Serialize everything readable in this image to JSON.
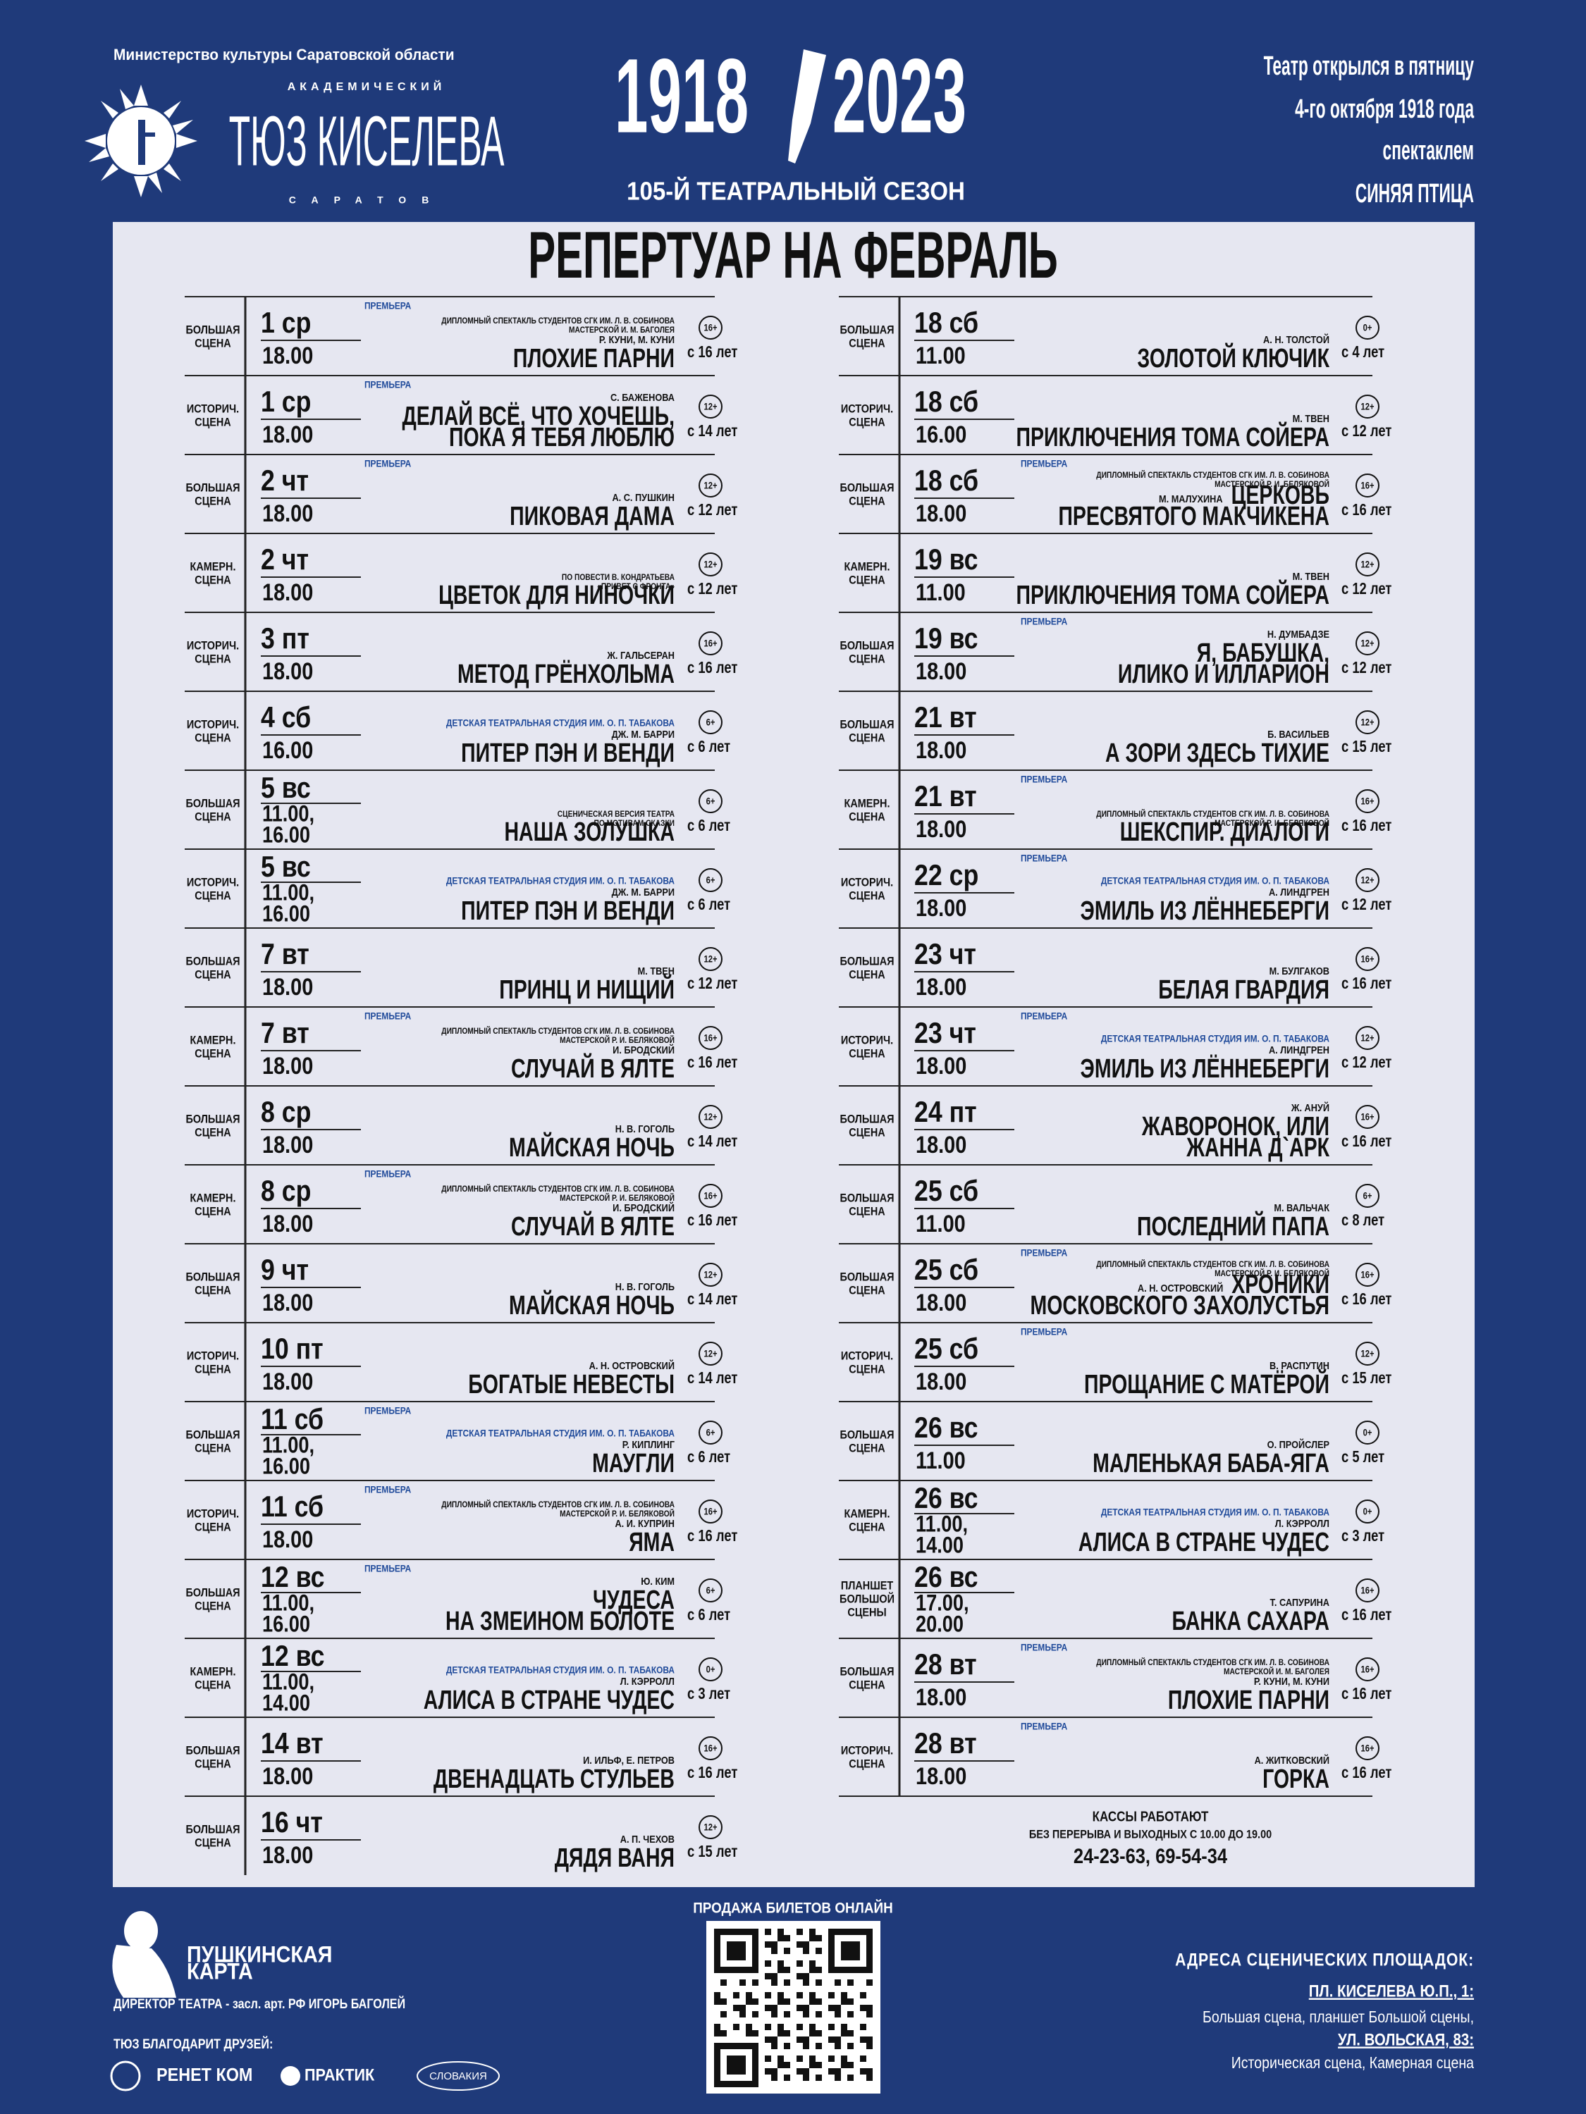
{
  "header": {
    "ministry": "Министерство культуры Саратовской области",
    "logo_top": "АКАДЕМИЧЕСКИЙ",
    "logo_name": "ТЮЗ КИСЕЛЕВА",
    "logo_city": "САРАТОВ",
    "year_start": "1918",
    "year_end": "2023",
    "season": "105-Й ТЕАТРАЛЬНЫЙ СЕЗОН",
    "history": [
      "Театр открылся в пятницу",
      "4-го октября 1918 года",
      "спектаклем",
      "СИНЯЯ ПТИЦА"
    ]
  },
  "title": "РЕПЕРТУАР НА ФЕВРАЛЬ",
  "schedule": {
    "left": [
      {
        "stage": [
          "БОЛЬШАЯ",
          "СЦЕНА"
        ],
        "date": "1 ср",
        "times": [
          "18.00"
        ],
        "tag": "ПРЕМЬЕРА",
        "notes": [
          "ДИПЛОМНЫЙ СПЕКТАКЛЬ СТУДЕНТОВ СГК ИМ. Л. В. СОБИНОВА",
          "МАСТЕРСКОЙ И. М. БАГОЛЕЯ"
        ],
        "author": "Р. КУНИ, М. КУНИ",
        "title": [
          "ПЛОХИЕ ПАРНИ"
        ],
        "rating": "16+",
        "age": "с 16 лет"
      },
      {
        "stage": [
          "ИСТОРИЧ.",
          "СЦЕНА"
        ],
        "date": "1 ср",
        "times": [
          "18.00"
        ],
        "tag": "ПРЕМЬЕРА",
        "author": "С. БАЖЕНОВА",
        "title": [
          "ДЕЛАЙ ВСЁ, ЧТО ХОЧЕШЬ,",
          "ПОКА Я ТЕБЯ ЛЮБЛЮ"
        ],
        "rating": "12+",
        "age": "с 14 лет"
      },
      {
        "stage": [
          "БОЛЬШАЯ",
          "СЦЕНА"
        ],
        "date": "2 чт",
        "times": [
          "18.00"
        ],
        "tag": "ПРЕМЬЕРА",
        "author": "А. С. ПУШКИН",
        "title": [
          "ПИКОВАЯ ДАМА"
        ],
        "rating": "12+",
        "age": "с 12 лет"
      },
      {
        "stage": [
          "КАМЕРН.",
          "СЦЕНА"
        ],
        "date": "2 чт",
        "times": [
          "18.00"
        ],
        "notes": [
          "ПО ПОВЕСТИ В. КОНДРАТЬЕВА",
          "«ПРИВЕТ С ФРОНТА»"
        ],
        "title": [
          "ЦВЕТОК ДЛЯ НИНОЧКИ"
        ],
        "rating": "12+",
        "age": "с 12 лет"
      },
      {
        "stage": [
          "ИСТОРИЧ.",
          "СЦЕНА"
        ],
        "date": "3 пт",
        "times": [
          "18.00"
        ],
        "author": "Ж. ГАЛЬСЕРАН",
        "title": [
          "МЕТОД ГРЁНХОЛЬМА"
        ],
        "rating": "16+",
        "age": "с 16 лет"
      },
      {
        "stage": [
          "ИСТОРИЧ.",
          "СЦЕНА"
        ],
        "date": "4 сб",
        "times": [
          "16.00"
        ],
        "studio": "ДЕТСКАЯ ТЕАТРАЛЬНАЯ СТУДИЯ ИМ. О. П. ТАБАКОВА",
        "author": "ДЖ. М. БАРРИ",
        "title": [
          "ПИТЕР ПЭН И ВЕНДИ"
        ],
        "rating": "6+",
        "age": "с 6 лет"
      },
      {
        "stage": [
          "БОЛЬШАЯ",
          "СЦЕНА"
        ],
        "date": "5 вс",
        "times": [
          "11.00,",
          "16.00"
        ],
        "notes": [
          "СЦЕНИЧЕСКАЯ ВЕРСИЯ ТЕАТРА",
          "ПО МОТИВАМ СКАЗКИ"
        ],
        "title": [
          "НАША ЗОЛУШКА"
        ],
        "rating": "6+",
        "age": "с 6 лет"
      },
      {
        "stage": [
          "ИСТОРИЧ.",
          "СЦЕНА"
        ],
        "date": "5 вс",
        "times": [
          "11.00,",
          "16.00"
        ],
        "studio": "ДЕТСКАЯ ТЕАТРАЛЬНАЯ СТУДИЯ ИМ. О. П. ТАБАКОВА",
        "author": "ДЖ. М. БАРРИ",
        "title": [
          "ПИТЕР ПЭН И ВЕНДИ"
        ],
        "rating": "6+",
        "age": "с 6 лет"
      },
      {
        "stage": [
          "БОЛЬШАЯ",
          "СЦЕНА"
        ],
        "date": "7 вт",
        "times": [
          "18.00"
        ],
        "author": "М. ТВЕН",
        "title": [
          "ПРИНЦ И НИЩИЙ"
        ],
        "rating": "12+",
        "age": "с 12 лет"
      },
      {
        "stage": [
          "КАМЕРН.",
          "СЦЕНА"
        ],
        "date": "7 вт",
        "times": [
          "18.00"
        ],
        "tag": "ПРЕМЬЕРА",
        "notes": [
          "ДИПЛОМНЫЙ СПЕКТАКЛЬ СТУДЕНТОВ СГК ИМ. Л. В. СОБИНОВА",
          "МАСТЕРСКОЙ Р. И. БЕЛЯКОВОЙ"
        ],
        "author": "И. БРОДСКИЙ",
        "title": [
          "СЛУЧАЙ В ЯЛТЕ"
        ],
        "rating": "16+",
        "age": "с 16 лет"
      },
      {
        "stage": [
          "БОЛЬШАЯ",
          "СЦЕНА"
        ],
        "date": "8 ср",
        "times": [
          "18.00"
        ],
        "author": "Н. В. ГОГОЛЬ",
        "title": [
          "МАЙСКАЯ НОЧЬ"
        ],
        "rating": "12+",
        "age": "с 14 лет"
      },
      {
        "stage": [
          "КАМЕРН.",
          "СЦЕНА"
        ],
        "date": "8 ср",
        "times": [
          "18.00"
        ],
        "tag": "ПРЕМЬЕРА",
        "notes": [
          "ДИПЛОМНЫЙ СПЕКТАКЛЬ СТУДЕНТОВ СГК ИМ. Л. В. СОБИНОВА",
          "МАСТЕРСКОЙ Р. И. БЕЛЯКОВОЙ"
        ],
        "author": "И. БРОДСКИЙ",
        "title": [
          "СЛУЧАЙ В ЯЛТЕ"
        ],
        "rating": "16+",
        "age": "с 16 лет"
      },
      {
        "stage": [
          "БОЛЬШАЯ",
          "СЦЕНА"
        ],
        "date": "9 чт",
        "times": [
          "18.00"
        ],
        "author": "Н. В. ГОГОЛЬ",
        "title": [
          "МАЙСКАЯ НОЧЬ"
        ],
        "rating": "12+",
        "age": "с 14 лет"
      },
      {
        "stage": [
          "ИСТОРИЧ.",
          "СЦЕНА"
        ],
        "date": "10 пт",
        "times": [
          "18.00"
        ],
        "author": "А. Н. ОСТРОВСКИЙ",
        "title": [
          "БОГАТЫЕ НЕВЕСТЫ"
        ],
        "rating": "12+",
        "age": "с 14 лет"
      },
      {
        "stage": [
          "БОЛЬШАЯ",
          "СЦЕНА"
        ],
        "date": "11 сб",
        "times": [
          "11.00,",
          "16.00"
        ],
        "tag": "ПРЕМЬЕРА",
        "studio": "ДЕТСКАЯ ТЕАТРАЛЬНАЯ СТУДИЯ ИМ. О. П. ТАБАКОВА",
        "author": "Р. КИПЛИНГ",
        "title": [
          "МАУГЛИ"
        ],
        "rating": "6+",
        "age": "с 6 лет"
      },
      {
        "stage": [
          "ИСТОРИЧ.",
          "СЦЕНА"
        ],
        "date": "11 сб",
        "times": [
          "18.00"
        ],
        "tag": "ПРЕМЬЕРА",
        "notes": [
          "ДИПЛОМНЫЙ СПЕКТАКЛЬ СТУДЕНТОВ СГК ИМ. Л. В. СОБИНОВА",
          "МАСТЕРСКОЙ Р. И. БЕЛЯКОВОЙ"
        ],
        "author": "А. И. КУПРИН",
        "title": [
          "ЯМА"
        ],
        "rating": "16+",
        "age": "с 16 лет"
      },
      {
        "stage": [
          "БОЛЬШАЯ",
          "СЦЕНА"
        ],
        "date": "12 вс",
        "times": [
          "11.00,",
          "16.00"
        ],
        "tag": "ПРЕМЬЕРА",
        "author": "Ю. КИМ",
        "title": [
          "ЧУДЕСА",
          "НА ЗМЕИНОМ БОЛОТЕ"
        ],
        "rating": "6+",
        "age": "с 6 лет"
      },
      {
        "stage": [
          "КАМЕРН.",
          "СЦЕНА"
        ],
        "date": "12 вс",
        "times": [
          "11.00,",
          "14.00"
        ],
        "studio": "ДЕТСКАЯ ТЕАТРАЛЬНАЯ СТУДИЯ ИМ. О. П. ТАБАКОВА",
        "author": "Л. КЭРРОЛЛ",
        "title": [
          "АЛИСА В СТРАНЕ ЧУДЕС"
        ],
        "rating": "0+",
        "age": "с 3 лет"
      },
      {
        "stage": [
          "БОЛЬШАЯ",
          "СЦЕНА"
        ],
        "date": "14 вт",
        "times": [
          "18.00"
        ],
        "author": "И. ИЛЬФ, Е. ПЕТРОВ",
        "title": [
          "ДВЕНАДЦАТЬ СТУЛЬЕВ"
        ],
        "rating": "16+",
        "age": "с 16 лет"
      },
      {
        "stage": [
          "БОЛЬШАЯ",
          "СЦЕНА"
        ],
        "date": "16 чт",
        "times": [
          "18.00"
        ],
        "author": "А. П. ЧЕХОВ",
        "title": [
          "ДЯДЯ ВАНЯ"
        ],
        "rating": "12+",
        "age": "с 15 лет"
      }
    ],
    "right": [
      {
        "stage": [
          "БОЛЬШАЯ",
          "СЦЕНА"
        ],
        "date": "18 сб",
        "times": [
          "11.00"
        ],
        "author": "А. Н. ТОЛСТОЙ",
        "title": [
          "ЗОЛОТОЙ КЛЮЧИК"
        ],
        "rating": "0+",
        "age": "с 4 лет"
      },
      {
        "stage": [
          "ИСТОРИЧ.",
          "СЦЕНА"
        ],
        "date": "18 сб",
        "times": [
          "16.00"
        ],
        "author": "М. ТВЕН",
        "title": [
          "ПРИКЛЮЧЕНИЯ ТОМА СОЙЕРА"
        ],
        "rating": "12+",
        "age": "с 12 лет"
      },
      {
        "stage": [
          "БОЛЬШАЯ",
          "СЦЕНА"
        ],
        "date": "18 сб",
        "times": [
          "18.00"
        ],
        "tag": "ПРЕМЬЕРА",
        "notes": [
          "ДИПЛОМНЫЙ СПЕКТАКЛЬ СТУДЕНТОВ СГК ИМ. Л. В. СОБИНОВА",
          "МАСТЕРСКОЙ Р. И. БЕЛЯКОВОЙ"
        ],
        "author": "М. МАЛУХИНА",
        "title": [
          "ЦЕРКОВЬ",
          "ПРЕСВЯТОГО МАКЧИКЕНА"
        ],
        "rating": "16+",
        "age": "с 16 лет"
      },
      {
        "stage": [
          "КАМЕРН.",
          "СЦЕНА"
        ],
        "date": "19 вс",
        "times": [
          "11.00"
        ],
        "author": "М. ТВЕН",
        "title": [
          "ПРИКЛЮЧЕНИЯ ТОМА СОЙЕРА"
        ],
        "rating": "12+",
        "age": "с 12 лет"
      },
      {
        "stage": [
          "БОЛЬШАЯ",
          "СЦЕНА"
        ],
        "date": "19 вс",
        "times": [
          "18.00"
        ],
        "tag": "ПРЕМЬЕРА",
        "author": "Н. ДУМБАДЗЕ",
        "title": [
          "Я, БАБУШКА,",
          "ИЛИКО И ИЛЛАРИОН"
        ],
        "rating": "12+",
        "age": "с 12 лет"
      },
      {
        "stage": [
          "БОЛЬШАЯ",
          "СЦЕНА"
        ],
        "date": "21 вт",
        "times": [
          "18.00"
        ],
        "author": "Б. ВАСИЛЬЕВ",
        "title": [
          "А ЗОРИ ЗДЕСЬ ТИХИЕ"
        ],
        "rating": "12+",
        "age": "с 15 лет"
      },
      {
        "stage": [
          "КАМЕРН.",
          "СЦЕНА"
        ],
        "date": "21 вт",
        "times": [
          "18.00"
        ],
        "tag": "ПРЕМЬЕРА",
        "notes": [
          "ДИПЛОМНЫЙ СПЕКТАКЛЬ СТУДЕНТОВ СГК ИМ. Л. В. СОБИНОВА",
          "МАСТЕРСКОЙ Р. И. БЕЛЯКОВОЙ"
        ],
        "title": [
          "ШЕКСПИР. ДИАЛОГИ"
        ],
        "rating": "16+",
        "age": "с 16 лет"
      },
      {
        "stage": [
          "ИСТОРИЧ.",
          "СЦЕНА"
        ],
        "date": "22 ср",
        "times": [
          "18.00"
        ],
        "tag": "ПРЕМЬЕРА",
        "studio": "ДЕТСКАЯ ТЕАТРАЛЬНАЯ СТУДИЯ ИМ. О. П. ТАБАКОВА",
        "author": "А. ЛИНДГРЕН",
        "title": [
          "ЭМИЛЬ ИЗ ЛЁННЕБЕРГИ"
        ],
        "rating": "12+",
        "age": "с 12 лет"
      },
      {
        "stage": [
          "БОЛЬШАЯ",
          "СЦЕНА"
        ],
        "date": "23 чт",
        "times": [
          "18.00"
        ],
        "author": "М. БУЛГАКОВ",
        "title": [
          "БЕЛАЯ ГВАРДИЯ"
        ],
        "rating": "16+",
        "age": "с 16 лет"
      },
      {
        "stage": [
          "ИСТОРИЧ.",
          "СЦЕНА"
        ],
        "date": "23 чт",
        "times": [
          "18.00"
        ],
        "tag": "ПРЕМЬЕРА",
        "studio": "ДЕТСКАЯ ТЕАТРАЛЬНАЯ СТУДИЯ ИМ. О. П. ТАБАКОВА",
        "author": "А. ЛИНДГРЕН",
        "title": [
          "ЭМИЛЬ ИЗ ЛЁННЕБЕРГИ"
        ],
        "rating": "12+",
        "age": "с 12 лет"
      },
      {
        "stage": [
          "БОЛЬШАЯ",
          "СЦЕНА"
        ],
        "date": "24 пт",
        "times": [
          "18.00"
        ],
        "author": "Ж. АНУЙ",
        "title": [
          "ЖАВОРОНОК, ИЛИ",
          "ЖАННА Д`АРК"
        ],
        "rating": "16+",
        "age": "с 16 лет"
      },
      {
        "stage": [
          "БОЛЬШАЯ",
          "СЦЕНА"
        ],
        "date": "25 сб",
        "times": [
          "11.00"
        ],
        "author": "М. ВАЛЬЧАК",
        "title": [
          "ПОСЛЕДНИЙ ПАПА"
        ],
        "rating": "6+",
        "age": "с 8 лет"
      },
      {
        "stage": [
          "БОЛЬШАЯ",
          "СЦЕНА"
        ],
        "date": "25 сб",
        "times": [
          "18.00"
        ],
        "tag": "ПРЕМЬЕРА",
        "notes": [
          "ДИПЛОМНЫЙ СПЕКТАКЛЬ СТУДЕНТОВ СГК ИМ. Л. В. СОБИНОВА",
          "МАСТЕРСКОЙ Р. И. БЕЛЯКОВОЙ"
        ],
        "author": "А. Н. ОСТРОВСКИЙ",
        "title": [
          "ХРОНИКИ",
          "МОСКОВСКОГО ЗАХОЛУСТЬЯ"
        ],
        "rating": "16+",
        "age": "с 16 лет"
      },
      {
        "stage": [
          "ИСТОРИЧ.",
          "СЦЕНА"
        ],
        "date": "25 сб",
        "times": [
          "18.00"
        ],
        "tag": "ПРЕМЬЕРА",
        "author": "В. РАСПУТИН",
        "title": [
          "ПРОЩАНИЕ С МАТЁРОЙ"
        ],
        "rating": "12+",
        "age": "с 15 лет"
      },
      {
        "stage": [
          "БОЛЬШАЯ",
          "СЦЕНА"
        ],
        "date": "26 вс",
        "times": [
          "11.00"
        ],
        "author": "О. ПРОЙСЛЕР",
        "title": [
          "МАЛЕНЬКАЯ БАБА-ЯГА"
        ],
        "rating": "0+",
        "age": "с 5 лет"
      },
      {
        "stage": [
          "КАМЕРН.",
          "СЦЕНА"
        ],
        "date": "26 вс",
        "times": [
          "11.00,",
          "14.00"
        ],
        "studio": "ДЕТСКАЯ ТЕАТРАЛЬНАЯ СТУДИЯ ИМ. О. П. ТАБАКОВА",
        "author": "Л. КЭРРОЛЛ",
        "title": [
          "АЛИСА В СТРАНЕ ЧУДЕС"
        ],
        "rating": "0+",
        "age": "с 3 лет"
      },
      {
        "stage": [
          "ПЛАНШЕТ",
          "БОЛЬШОЙ",
          "СЦЕНЫ"
        ],
        "date": "26 вс",
        "times": [
          "17.00,",
          "20.00"
        ],
        "author": "Т. САПУРИНА",
        "title": [
          "БАНКА САХАРА"
        ],
        "rating": "16+",
        "age": "с 16 лет"
      },
      {
        "stage": [
          "БОЛЬШАЯ",
          "СЦЕНА"
        ],
        "date": "28 вт",
        "times": [
          "18.00"
        ],
        "tag": "ПРЕМЬЕРА",
        "notes": [
          "ДИПЛОМНЫЙ СПЕКТАКЛЬ СТУДЕНТОВ СГК ИМ. Л. В. СОБИНОВА",
          "МАСТЕРСКОЙ И. М. БАГОЛЕЯ"
        ],
        "author": "Р. КУНИ, М. КУНИ",
        "title": [
          "ПЛОХИЕ ПАРНИ"
        ],
        "rating": "16+",
        "age": "с 16 лет"
      },
      {
        "stage": [
          "ИСТОРИЧ.",
          "СЦЕНА"
        ],
        "date": "28 вт",
        "times": [
          "18.00"
        ],
        "tag": "ПРЕМЬЕРА",
        "author": "А. ЖИТКОВСКИЙ",
        "title": [
          "ГОРКА"
        ],
        "rating": "16+",
        "age": "с 16 лет"
      }
    ]
  },
  "box_office": [
    "КАССЫ РАБОТАЮТ",
    "БЕЗ ПЕРЕРЫВА И ВЫХОДНЫХ С 10.00 ДО 19.00",
    "24-23-63, 69-54-34"
  ],
  "footer": {
    "online": "ПРОДАЖА БИЛЕТОВ ОНЛАЙН",
    "pushkin_card": [
      "ПУШКИНСКАЯ",
      "КАРТА"
    ],
    "director": "ДИРЕКТОР ТЕАТРА - засл. арт. РФ ИГОРЬ БАГОЛЕЙ",
    "thanks": "ТЮЗ БЛАГОДАРИТ ДРУЗЕЙ:",
    "sponsors": [
      "РЕНЕТ КОМ",
      "ПРАКТИК",
      "СЛОВАКИЯ"
    ],
    "addresses_title": "АДРЕСА СЦЕНИЧЕСКИХ ПЛОЩАДОК:",
    "addresses": [
      {
        "place": "ПЛ. КИСЕЛЕВА Ю.П., 1:",
        "stages": "Большая сцена, планшет Большой сцены,"
      },
      {
        "place": "УЛ. ВОЛЬСКАЯ, 83:",
        "stages": "Историческая сцена, Камерная сцена"
      }
    ]
  }
}
